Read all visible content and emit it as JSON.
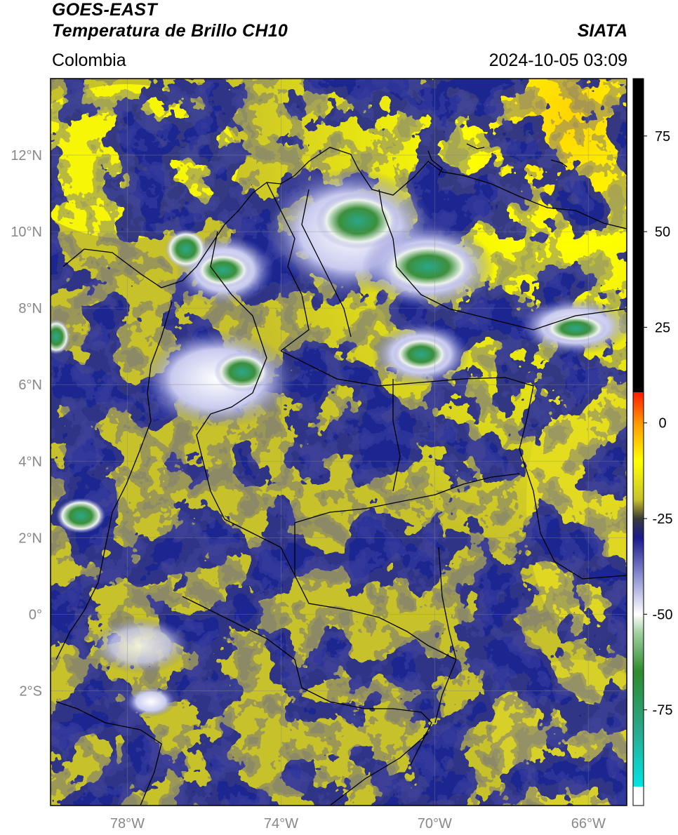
{
  "header": {
    "satellite": "GOES-EAST",
    "product": "Temperatura de Brillo CH10",
    "agency": "SIATA",
    "region": "Colombia",
    "datetime": "2024-10-05 03:09"
  },
  "map": {
    "lon_range": [
      -80,
      -65
    ],
    "lat_range": [
      -5,
      14
    ],
    "lat_ticks": [
      {
        "value": 12,
        "label": "12°N"
      },
      {
        "value": 10,
        "label": "10°N"
      },
      {
        "value": 8,
        "label": "8°N"
      },
      {
        "value": 6,
        "label": "6°N"
      },
      {
        "value": 4,
        "label": "4°N"
      },
      {
        "value": 2,
        "label": "2°N"
      },
      {
        "value": 0,
        "label": "0°"
      },
      {
        "value": -2,
        "label": "2°S"
      }
    ],
    "lon_ticks": [
      {
        "value": -78,
        "label": "78°W"
      },
      {
        "value": -74,
        "label": "74°W"
      },
      {
        "value": -70,
        "label": "70°W"
      },
      {
        "value": -66,
        "label": "66°W"
      }
    ],
    "background_color": "#c8c22a",
    "cold_cloud_color": "#1e2590"
  },
  "colorbar": {
    "range": [
      -100,
      90
    ],
    "ticks": [
      {
        "value": 75,
        "label": "75"
      },
      {
        "value": 50,
        "label": "50"
      },
      {
        "value": 25,
        "label": "25"
      },
      {
        "value": 0,
        "label": "0"
      },
      {
        "value": -25,
        "label": "-25"
      },
      {
        "value": -50,
        "label": "-50"
      },
      {
        "value": -75,
        "label": "-75"
      }
    ],
    "stops": [
      {
        "value": -100,
        "color": "#ffffff"
      },
      {
        "value": -95,
        "color": "#ffffff"
      },
      {
        "value": -95,
        "color": "#00e5e5"
      },
      {
        "value": -80,
        "color": "#2aa88a"
      },
      {
        "value": -65,
        "color": "#2e8b2e"
      },
      {
        "value": -55,
        "color": "#9fcf9f"
      },
      {
        "value": -50,
        "color": "#ffffff"
      },
      {
        "value": -40,
        "color": "#8a8fd0"
      },
      {
        "value": -30,
        "color": "#1a1a8c"
      },
      {
        "value": -25,
        "color": "#3a3a3a"
      },
      {
        "value": -20,
        "color": "#c8c22a"
      },
      {
        "value": -10,
        "color": "#ffff00"
      },
      {
        "value": 0,
        "color": "#ff9900"
      },
      {
        "value": 8,
        "color": "#ff1a00"
      },
      {
        "value": 8,
        "color": "#000000"
      },
      {
        "value": 90,
        "color": "#000000"
      }
    ]
  }
}
